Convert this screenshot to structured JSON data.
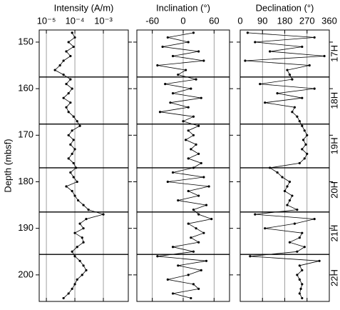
{
  "chart_data": [
    {
      "type": "line",
      "title": "Intensity (A/m)",
      "x_scale": "log",
      "color": "#000000",
      "xlim": [
        5.6e-06,
        0.0075
      ],
      "xticks": [
        {
          "value": 1e-05,
          "label": "10⁻⁵"
        },
        {
          "value": 0.0001,
          "label": "10⁻⁴"
        },
        {
          "value": 0.001,
          "label": "10⁻³"
        }
      ],
      "ylabel": "Depth (mbsf)",
      "ylim": [
        205.7,
        147.4
      ],
      "yticks": [
        150,
        160,
        170,
        180,
        190,
        200
      ],
      "grid": true,
      "y": [
        148,
        149,
        150,
        151,
        152,
        153,
        154,
        155,
        156,
        157,
        158,
        159,
        160,
        161,
        162,
        163,
        164,
        165,
        166,
        167,
        168,
        169,
        170,
        171,
        172,
        173,
        174,
        175,
        176,
        177,
        178,
        179,
        180,
        181,
        182,
        183,
        184,
        185,
        186,
        187,
        188,
        189,
        190,
        191,
        192,
        193,
        194,
        195,
        196,
        197,
        198,
        199,
        200,
        201,
        202,
        203,
        204,
        205
      ],
      "values": [
        8e-05,
        0.0001,
        6e-05,
        9e-05,
        5e-05,
        7e-05,
        4e-05,
        3e-05,
        2e-05,
        4e-05,
        7e-05,
        5e-05,
        8e-05,
        6e-05,
        4e-05,
        7e-05,
        5e-05,
        6e-05,
        9e-05,
        0.00012,
        0.00015,
        8e-05,
        6e-05,
        9e-05,
        7e-05,
        0.0001,
        8e-05,
        6e-05,
        9e-05,
        0.00011,
        7e-05,
        9e-05,
        0.00012,
        5e-05,
        8e-05,
        0.0001,
        0.00013,
        0.0002,
        0.0003,
        0.001,
        0.00025,
        0.00015,
        0.0002,
        0.0001,
        0.00018,
        0.0002,
        0.00012,
        8e-05,
        0.0001,
        0.00015,
        0.0002,
        0.00025,
        0.00018,
        0.00012,
        0.0001,
        8e-05,
        6e-05,
        4e-05
      ]
    },
    {
      "type": "line",
      "title": "Inclination (°)",
      "color": "#000000",
      "xlim": [
        -90,
        90
      ],
      "xticks": [
        -60,
        0,
        60
      ],
      "grid": true,
      "values": [
        20,
        -30,
        10,
        -40,
        30,
        -20,
        40,
        -50,
        5,
        -10,
        25,
        -35,
        15,
        -20,
        35,
        -25,
        10,
        -45,
        20,
        0,
        30,
        10,
        20,
        5,
        25,
        15,
        30,
        10,
        35,
        20,
        -20,
        40,
        -30,
        50,
        10,
        30,
        -10,
        45,
        20,
        30,
        55,
        10,
        25,
        40,
        15,
        30,
        -20,
        20,
        -50,
        45,
        -10,
        35,
        10,
        -30,
        20,
        30,
        -20,
        15
      ]
    },
    {
      "type": "line",
      "title": "Declination (°)",
      "color": "#000000",
      "xlim": [
        0,
        360
      ],
      "xticks": [
        0,
        90,
        180,
        270,
        360
      ],
      "grid": true,
      "values": [
        30,
        300,
        60,
        250,
        120,
        340,
        20,
        280,
        190,
        200,
        210,
        80,
        300,
        150,
        250,
        100,
        220,
        210,
        230,
        240,
        250,
        260,
        270,
        255,
        265,
        250,
        270,
        260,
        240,
        120,
        150,
        170,
        200,
        190,
        180,
        210,
        200,
        190,
        230,
        60,
        300,
        220,
        100,
        250,
        240,
        200,
        260,
        230,
        40,
        320,
        240,
        250,
        230,
        240,
        250,
        245,
        240,
        250
      ],
      "core_boundaries": [
        157.5,
        167.6,
        177,
        186.5,
        195.6
      ],
      "core_labels": [
        "17H",
        "18H",
        "19H",
        "20H",
        "21H",
        "22H"
      ]
    }
  ]
}
